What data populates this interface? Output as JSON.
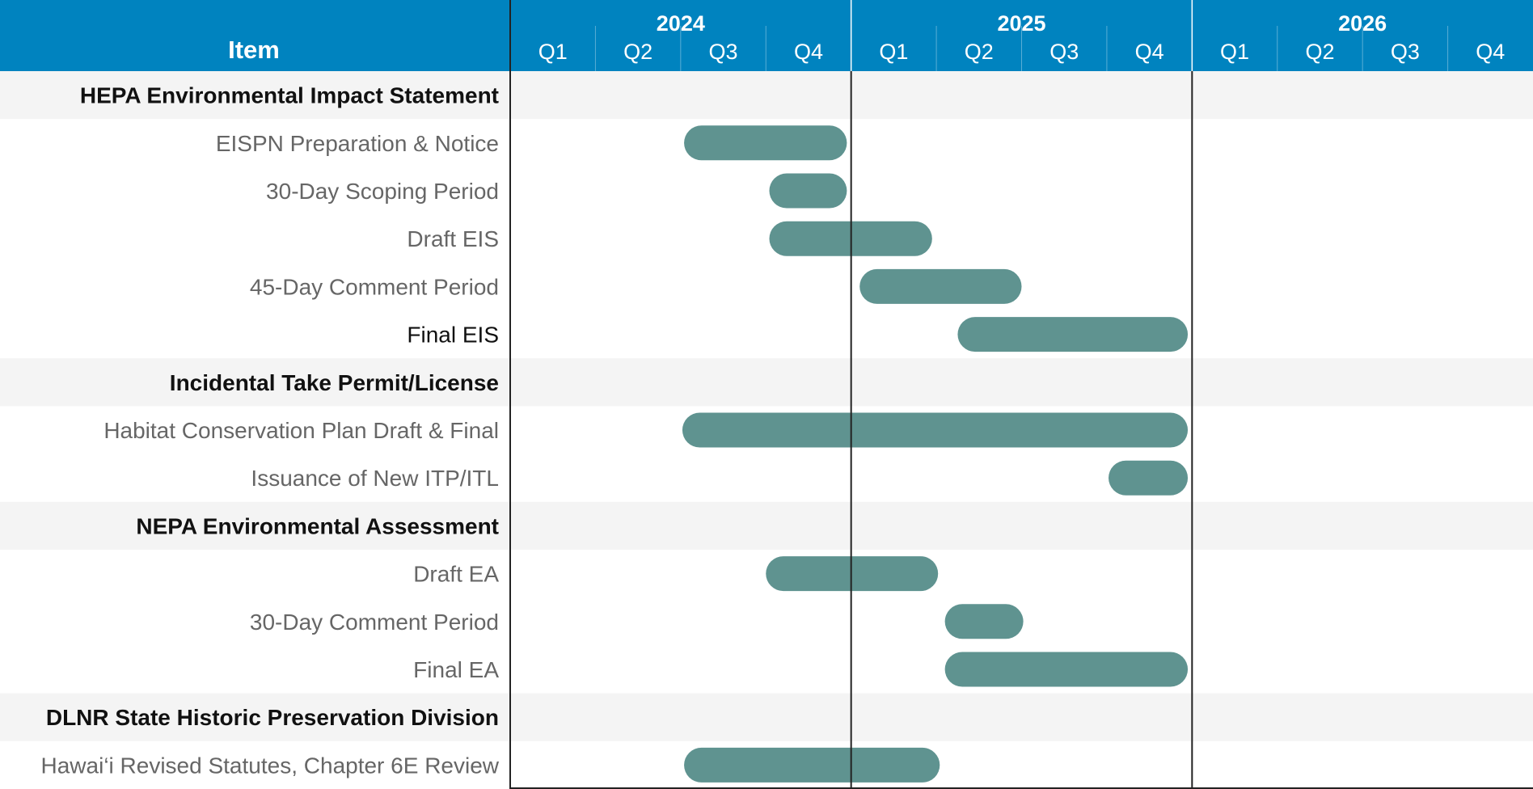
{
  "chart_data": {
    "type": "gantt",
    "item_header": "Item",
    "years": [
      "2024",
      "2025",
      "2026"
    ],
    "quarters": [
      "Q1",
      "Q2",
      "Q3",
      "Q4"
    ],
    "time_unit": "quarter index from 2024 Q1 start (0 to 12)",
    "timeline_range": [
      0,
      12
    ],
    "colors": {
      "header_bg": "#0083BF",
      "bar": "#5F9390",
      "group_row_bg": "#F4F4F4",
      "group_text": "#111111",
      "task_text": "#666666"
    },
    "rows": [
      {
        "kind": "group",
        "label": "HEPA Environmental Impact Statement"
      },
      {
        "kind": "task",
        "label": "EISPN Preparation & Notice",
        "start": 2.04,
        "end": 3.95
      },
      {
        "kind": "task",
        "label": "30-Day Scoping Period",
        "start": 3.04,
        "end": 3.95
      },
      {
        "kind": "task",
        "label": "Draft EIS",
        "start": 3.04,
        "end": 4.95
      },
      {
        "kind": "task",
        "label": "45-Day Comment Period",
        "start": 4.1,
        "end": 6.0
      },
      {
        "kind": "task",
        "label": "Final EIS",
        "start": 5.25,
        "end": 7.95,
        "emphasis": true
      },
      {
        "kind": "group",
        "label": "Incidental Take Permit/License"
      },
      {
        "kind": "task",
        "label": "Habitat Conservation Plan Draft & Final",
        "start": 2.02,
        "end": 7.95
      },
      {
        "kind": "task",
        "label": "Issuance of New ITP/ITL",
        "start": 7.02,
        "end": 7.95
      },
      {
        "kind": "group",
        "label": "NEPA Environmental Assessment"
      },
      {
        "kind": "task",
        "label": "Draft EA",
        "start": 3.0,
        "end": 5.02
      },
      {
        "kind": "task",
        "label": "30-Day Comment Period",
        "start": 5.1,
        "end": 6.02
      },
      {
        "kind": "task",
        "label": "Final EA",
        "start": 5.1,
        "end": 7.95
      },
      {
        "kind": "group",
        "label": "DLNR State Historic Preservation Division"
      },
      {
        "kind": "task",
        "label": "Hawai‘i Revised Statutes, Chapter 6E Review",
        "start": 2.04,
        "end": 5.04
      }
    ]
  }
}
